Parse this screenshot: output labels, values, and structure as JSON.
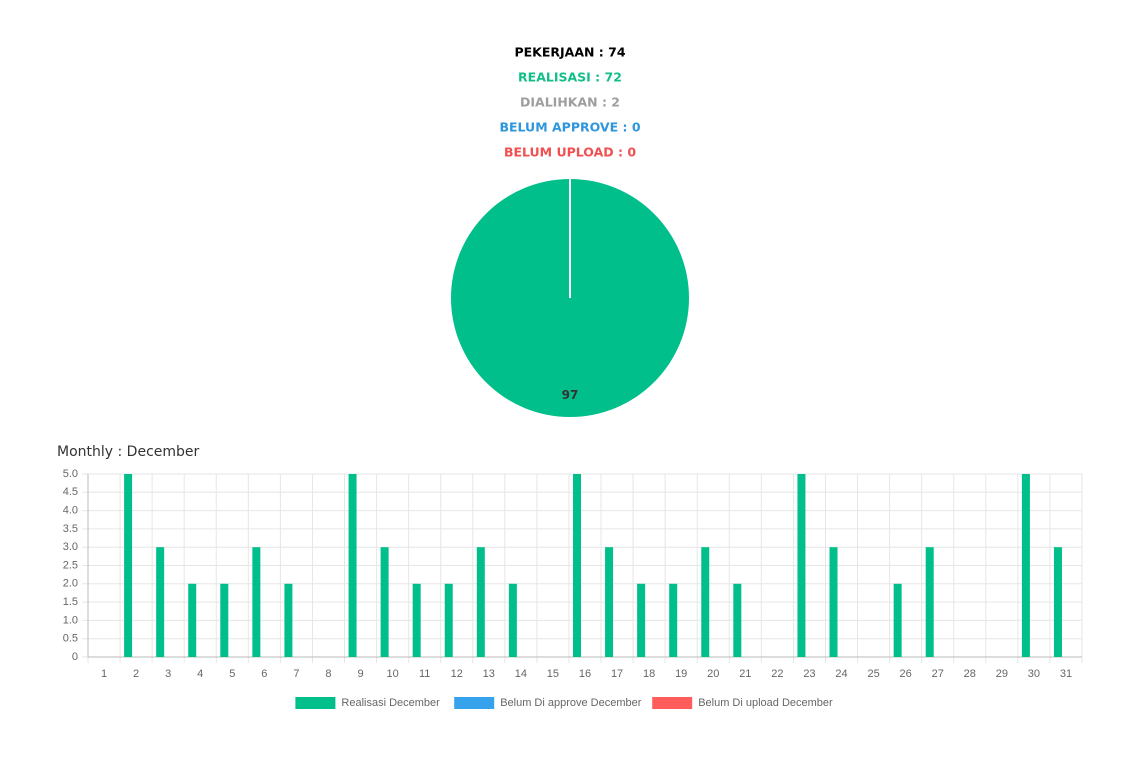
{
  "summary": [
    {
      "text": "PEKERJAAN : 74",
      "color": "#000000"
    },
    {
      "text": "REALISASI : 72",
      "color": "#12bf88"
    },
    {
      "text": "DIALIHKAN : 2",
      "color": "#9e9e9e"
    },
    {
      "text": "BELUM APPROVE : 0",
      "color": "#2f96dc"
    },
    {
      "text": "BELUM UPLOAD : 0",
      "color": "#f05050"
    }
  ],
  "chart_data": [
    {
      "type": "pie",
      "values": [
        97
      ],
      "colors": [
        "#00bf8a"
      ]
    },
    {
      "type": "bar",
      "title": "Monthly : December",
      "categories": [
        "1",
        "2",
        "3",
        "4",
        "5",
        "6",
        "7",
        "8",
        "9",
        "10",
        "11",
        "12",
        "13",
        "14",
        "15",
        "16",
        "17",
        "18",
        "19",
        "20",
        "21",
        "22",
        "23",
        "24",
        "25",
        "26",
        "27",
        "28",
        "29",
        "30",
        "31"
      ],
      "series": [
        {
          "name": "Realisasi December",
          "color": "#00bf8a",
          "values": [
            0,
            5,
            3,
            2,
            2,
            3,
            2,
            0,
            5,
            3,
            2,
            2,
            3,
            2,
            0,
            5,
            3,
            2,
            2,
            3,
            2,
            0,
            5,
            3,
            0,
            2,
            3,
            0,
            0,
            5,
            3
          ]
        },
        {
          "name": "Belum Di approve December",
          "color": "#36a2eb",
          "values": [
            0,
            0,
            0,
            0,
            0,
            0,
            0,
            0,
            0,
            0,
            0,
            0,
            0,
            0,
            0,
            0,
            0,
            0,
            0,
            0,
            0,
            0,
            0,
            0,
            0,
            0,
            0,
            0,
            0,
            0,
            0
          ]
        },
        {
          "name": "Belum Di upload December",
          "color": "#ff5c5c",
          "values": [
            0,
            0,
            0,
            0,
            0,
            0,
            0,
            0,
            0,
            0,
            0,
            0,
            0,
            0,
            0,
            0,
            0,
            0,
            0,
            0,
            0,
            0,
            0,
            0,
            0,
            0,
            0,
            0,
            0,
            0,
            0
          ]
        }
      ],
      "ylim": [
        0,
        5
      ],
      "yticks": [
        0,
        0.5,
        {
          "value": 1,
          "label": "1.0"
        },
        1.5,
        {
          "value": 2,
          "label": "2.0"
        },
        2.5,
        {
          "value": 3,
          "label": "3.0"
        },
        3.5,
        {
          "value": 4,
          "label": "4.0"
        },
        4.5,
        {
          "value": 5,
          "label": "5.0"
        }
      ],
      "grid": true,
      "legend": "bottom"
    }
  ]
}
